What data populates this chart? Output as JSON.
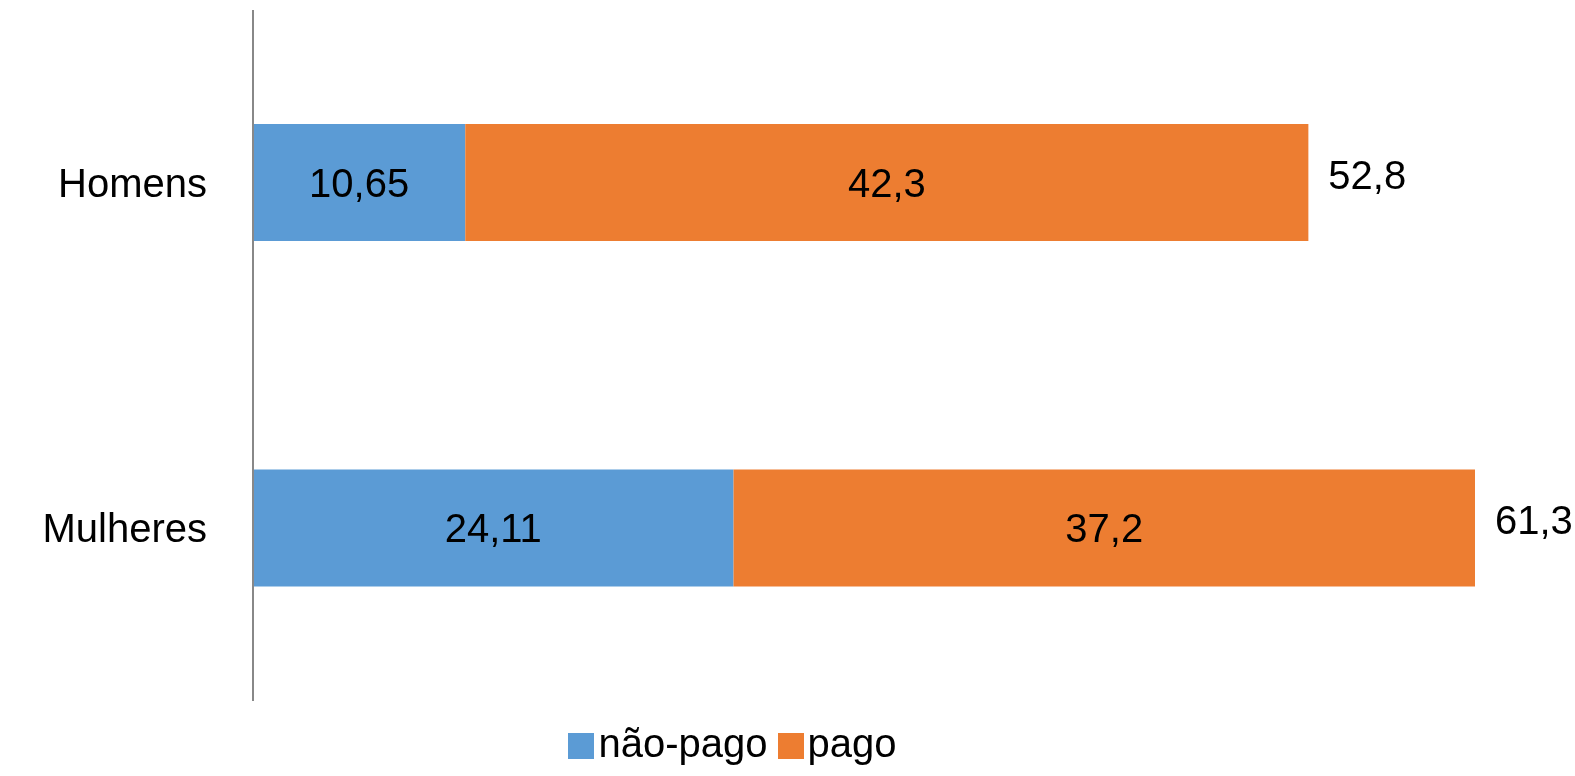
{
  "chart_data": {
    "type": "bar",
    "orientation": "horizontal",
    "stacked": true,
    "categories": [
      "Homens",
      "Mulheres"
    ],
    "series": [
      {
        "name": "não-pago",
        "color": "#5b9bd5",
        "values": [
          10.65,
          24.11
        ],
        "value_labels": [
          "10,65",
          "24,11"
        ]
      },
      {
        "name": "pago",
        "color": "#ed7d31",
        "values": [
          42.3,
          37.2
        ],
        "value_labels": [
          "42,3",
          "37,2"
        ]
      }
    ],
    "totals": [
      "52,8",
      "61,3"
    ],
    "legend": "bottom",
    "grid": false
  }
}
